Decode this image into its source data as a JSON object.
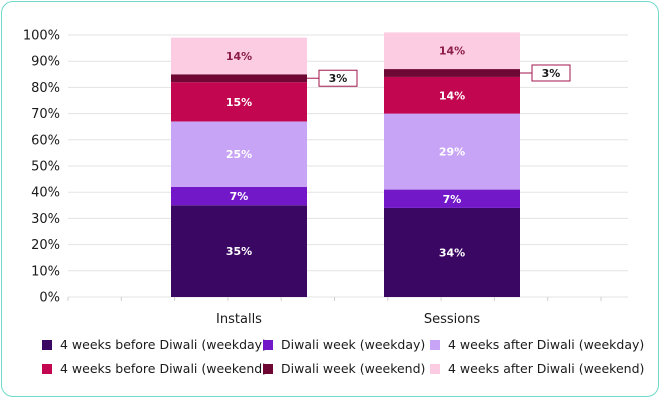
{
  "chart_data": {
    "type": "bar",
    "stacked": true,
    "categories": [
      "Installs",
      "Sessions"
    ],
    "yticks": [
      "0%",
      "10%",
      "20%",
      "30%",
      "40%",
      "50%",
      "60%",
      "70%",
      "80%",
      "90%",
      "100%"
    ],
    "ylim": [
      0,
      100
    ],
    "series": [
      {
        "name": "4 weeks before Diwali (weekday)",
        "color": "#3a0863",
        "label_color": "#ffffff",
        "values": [
          35,
          34
        ],
        "labels": [
          "35%",
          "34%"
        ]
      },
      {
        "name": "Diwali week (weekday)",
        "color": "#7218c9",
        "label_color": "#ffffff",
        "values": [
          7,
          7
        ],
        "labels": [
          "7%",
          "7%"
        ]
      },
      {
        "name": "4 weeks after Diwali (weekday)",
        "color": "#c7a4f5",
        "label_color": "#ffffff",
        "values": [
          25,
          29
        ],
        "labels": [
          "25%",
          "29%"
        ]
      },
      {
        "name": "4 weeks before Diwali (weekend)",
        "color": "#c2064f",
        "label_color": "#ffffff",
        "values": [
          15,
          14
        ],
        "labels": [
          "15%",
          "14%"
        ]
      },
      {
        "name": "Diwali week (weekend)",
        "color": "#6e0733",
        "label_color": "#ffffff",
        "values": [
          3,
          3
        ],
        "labels": [
          "3%",
          "3%"
        ]
      },
      {
        "name": "4 weeks after Diwali (weekend)",
        "color": "#fccde2",
        "label_color": "#8c1d49",
        "values": [
          14,
          14
        ],
        "labels": [
          "14%",
          "14%"
        ]
      }
    ],
    "callouts": [
      "3%",
      "3%"
    ],
    "callout_color": "#a3164d",
    "legend_position": "bottom"
  },
  "colors": {
    "frame_border": "#6fd9cc",
    "grid": "#e3e3e3",
    "axis_text": "#1a1a1a"
  }
}
